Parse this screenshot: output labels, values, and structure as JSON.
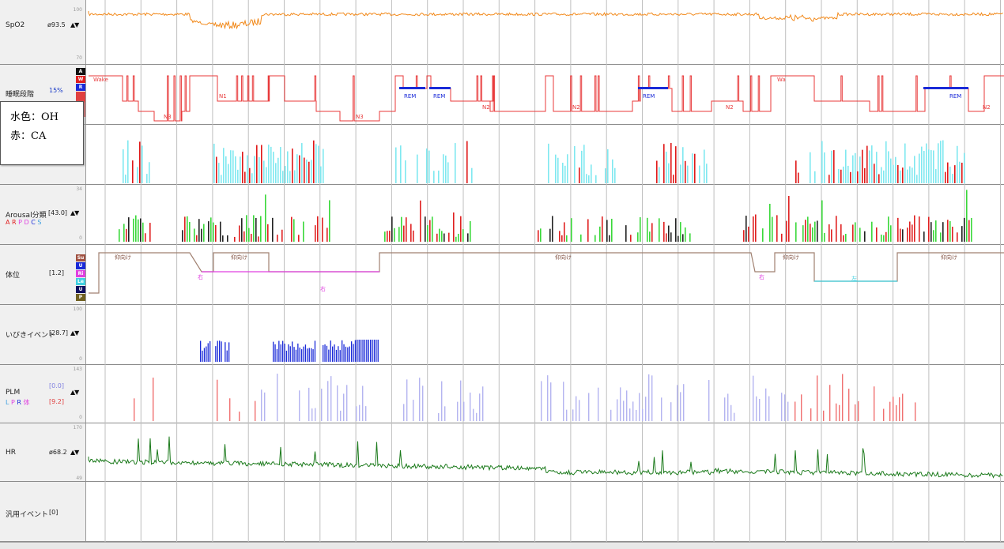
{
  "rows": {
    "spo2": {
      "label": "SpO2",
      "value": "ø93.5",
      "scale_top": "100",
      "scale_bottom": "70"
    },
    "sleep": {
      "label": "睡眠段階",
      "value": "15%",
      "badges": [
        "A",
        "W",
        "R"
      ]
    },
    "resp": {
      "label": ""
    },
    "arousal": {
      "label": "Arousal分類",
      "value": "[43.0]",
      "scale_top": "34",
      "scale_bottom": "0",
      "legend": [
        "A",
        "R",
        "P",
        "D",
        "C",
        "S"
      ]
    },
    "position": {
      "label": "体位",
      "value": "[1.2]",
      "badges": [
        "Su",
        "U",
        "Ri",
        "Le",
        "U",
        "P"
      ]
    },
    "snore": {
      "label": "いびきイベント",
      "value": "[28.7]",
      "scale_top": "100",
      "scale_bottom": "0"
    },
    "plm": {
      "label": "PLM",
      "value1": "[0.0]",
      "value2": "[9.2]",
      "scale_top": "143",
      "scale_bottom": "0",
      "legend": [
        "L",
        "P",
        "R",
        "体"
      ]
    },
    "hr": {
      "label": "HR",
      "value": "ø68.2",
      "scale_top": "170",
      "scale_bottom": "49"
    },
    "general": {
      "label": "汎用イベント",
      "value": "[0]"
    }
  },
  "arrows": "▲▼",
  "callout": {
    "line1": "水色：OH",
    "line2": "赤：CA"
  },
  "sleep_stage_labels": [
    "Wake",
    "N3",
    "N1",
    "N3",
    "REM",
    "REM",
    "N2",
    "N2",
    "REM",
    "N2",
    "Wa",
    "REM",
    "N2"
  ],
  "position_labels": [
    "仰向け",
    "右",
    "仰向け",
    "右",
    "仰向け",
    "右",
    "仰向け",
    "左",
    "仰向け"
  ],
  "colors": {
    "spo2": "#f28a1c",
    "sleep": "#e8393a",
    "rem": "#1a2ad8",
    "hr": "#1b7a1b",
    "oh": "#7fe8f0",
    "ca": "#e01818",
    "snore": "#1a2ad8",
    "plm": "#f07070",
    "plm_light": "#b4b4f0",
    "position": "#a08070",
    "position_side": "#e040e0",
    "position_left": "#40d0e0"
  },
  "chart_data": {
    "type": "line",
    "series": [
      {
        "name": "SpO2",
        "scale": [
          70,
          100
        ],
        "mean": 93.5
      },
      {
        "name": "HR",
        "scale": [
          49,
          170
        ],
        "mean": 68.2
      }
    ]
  }
}
